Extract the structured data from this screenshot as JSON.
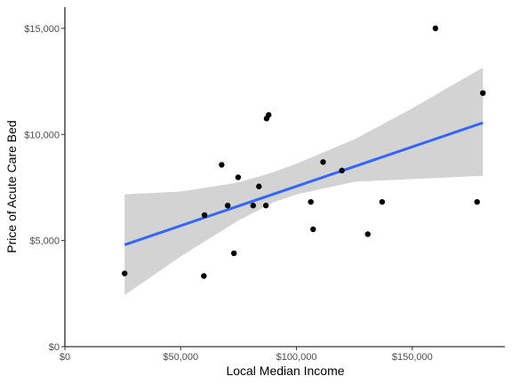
{
  "chart_data": {
    "type": "scatter",
    "title": "",
    "xlabel": "Local Median Income",
    "ylabel": "Price of Acute Care Bed",
    "xlim": [
      0,
      190000
    ],
    "ylim": [
      0,
      16000
    ],
    "x_ticks": [
      {
        "value": 0,
        "label": "$0"
      },
      {
        "value": 50000,
        "label": "$50,000"
      },
      {
        "value": 100000,
        "label": "$100,000"
      },
      {
        "value": 150000,
        "label": "$150,000"
      }
    ],
    "y_ticks": [
      {
        "value": 0,
        "label": "$0"
      },
      {
        "value": 5000,
        "label": "$5,000"
      },
      {
        "value": 10000,
        "label": "$10,000"
      },
      {
        "value": 15000,
        "label": "$15,000"
      }
    ],
    "grid": false,
    "legend": "none",
    "points": [
      {
        "x": 25800,
        "y": 3450
      },
      {
        "x": 60000,
        "y": 3330
      },
      {
        "x": 60300,
        "y": 6200
      },
      {
        "x": 67700,
        "y": 8570
      },
      {
        "x": 70300,
        "y": 6650
      },
      {
        "x": 73000,
        "y": 4400
      },
      {
        "x": 74800,
        "y": 7980
      },
      {
        "x": 81300,
        "y": 6650
      },
      {
        "x": 83800,
        "y": 7550
      },
      {
        "x": 86800,
        "y": 6650
      },
      {
        "x": 87100,
        "y": 10750
      },
      {
        "x": 88000,
        "y": 10920
      },
      {
        "x": 106200,
        "y": 6820
      },
      {
        "x": 107200,
        "y": 5530
      },
      {
        "x": 111500,
        "y": 8700
      },
      {
        "x": 119600,
        "y": 8300
      },
      {
        "x": 130800,
        "y": 5300
      },
      {
        "x": 137000,
        "y": 6820
      },
      {
        "x": 160000,
        "y": 15000
      },
      {
        "x": 178000,
        "y": 6820
      },
      {
        "x": 180500,
        "y": 11950
      }
    ],
    "trend_line": {
      "method": "linear",
      "x": [
        25800,
        180500
      ],
      "y": [
        4800,
        10550
      ],
      "line_color": "#3366ff"
    },
    "confidence_band": {
      "fill_color": "#d3d3d3",
      "x": [
        25800,
        50000,
        75000,
        90000,
        100000,
        125000,
        150000,
        180500
      ],
      "lower": [
        2430,
        4250,
        5950,
        6800,
        7170,
        7770,
        7900,
        8050
      ],
      "upper": [
        7180,
        7310,
        7740,
        8220,
        8620,
        9770,
        11230,
        13150
      ]
    },
    "point_color": "#000000",
    "axis_color": "#000000"
  }
}
